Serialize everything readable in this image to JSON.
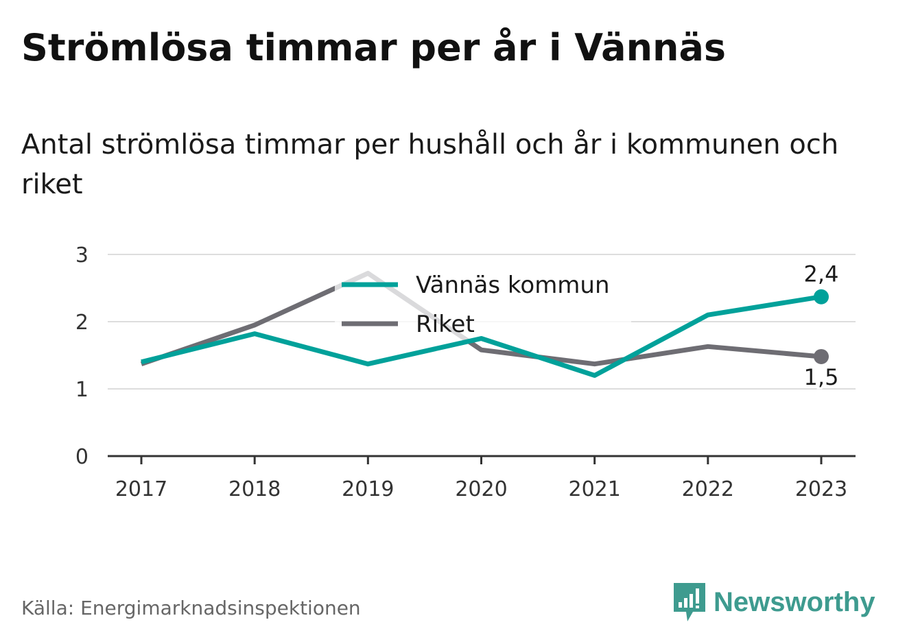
{
  "title": "Strömlösa timmar per år i Vännäs",
  "subtitle": "Antal strömlösa timmar per hushåll och år i kommunen och riket",
  "source": "Källa: Energimarknadsinspektionen",
  "brand": {
    "name": "Newsworthy",
    "icon": "bar-chart-badge-icon",
    "color": "#3e9b8f"
  },
  "colors": {
    "kommun": "#00a19a",
    "riket": "#6e6d73",
    "grid": "#dddddd",
    "axis": "#333333"
  },
  "chart_data": {
    "type": "line",
    "title": "",
    "xlabel": "",
    "ylabel": "",
    "x": [
      "2017",
      "2018",
      "2019",
      "2020",
      "2021",
      "2022",
      "2023"
    ],
    "ylim": [
      0,
      3
    ],
    "yticks": [
      "0",
      "1",
      "2",
      "3"
    ],
    "grid": true,
    "legend_position": "top-center",
    "series": [
      {
        "name": "Vännäs kommun",
        "color": "#00a19a",
        "values": [
          1.4,
          1.82,
          1.37,
          1.75,
          1.2,
          2.1,
          2.37
        ],
        "end_label": "2,4"
      },
      {
        "name": "Riket",
        "color": "#6e6d73",
        "values": [
          1.37,
          1.95,
          2.72,
          1.58,
          1.37,
          1.63,
          1.48
        ],
        "end_label": "1,5"
      }
    ]
  }
}
